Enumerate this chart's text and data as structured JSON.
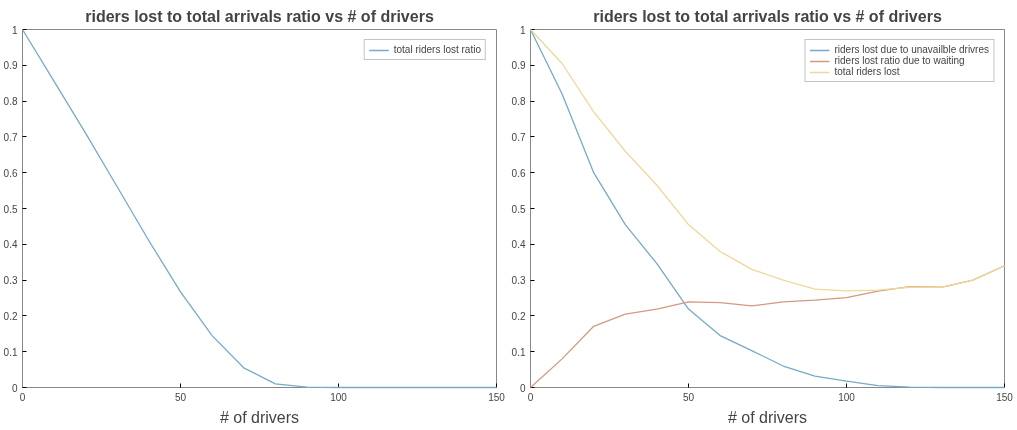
{
  "chart_data": [
    {
      "type": "line",
      "title": "riders lost to total arrivals ratio vs # of drivers",
      "xlabel": "# of drivers",
      "x": [
        0,
        10,
        20,
        30,
        40,
        50,
        60,
        70,
        80,
        90,
        100,
        110,
        120,
        130,
        140,
        150
      ],
      "series": [
        {
          "name": "total riders lost ratio",
          "color": "#77aac8",
          "values": [
            1,
            0.855,
            0.71,
            0.56,
            0.41,
            0.267,
            0.145,
            0.055,
            0.01,
            0.001,
            0,
            0,
            0,
            0,
            0,
            0
          ]
        }
      ],
      "xlim": [
        0,
        150
      ],
      "xticks": [
        0,
        50,
        100,
        150
      ],
      "ylim": [
        0,
        1
      ],
      "yticks": [
        0,
        0.1,
        0.2,
        0.3,
        0.4,
        0.5,
        0.6,
        0.7,
        0.8,
        0.9,
        1
      ],
      "grid": false,
      "legend": "top right",
      "marker": "none",
      "line_style": "solid"
    },
    {
      "type": "line",
      "title": "riders lost to total arrivals ratio vs # of drivers",
      "xlabel": "# of drivers",
      "x": [
        0,
        10,
        20,
        30,
        40,
        50,
        60,
        70,
        80,
        90,
        100,
        110,
        120,
        130,
        140,
        150
      ],
      "series": [
        {
          "name": "riders lost due to unavailble drivres",
          "color": "#77aac8",
          "values": [
            1,
            0.82,
            0.6,
            0.455,
            0.346,
            0.219,
            0.145,
            0.103,
            0.06,
            0.032,
            0.018,
            0.005,
            0.001,
            0,
            0,
            0
          ]
        },
        {
          "name": "riders lost ratio due to waiting",
          "color": "#d29a80",
          "values": [
            0,
            0.08,
            0.171,
            0.205,
            0.219,
            0.239,
            0.237,
            0.228,
            0.239,
            0.244,
            0.251,
            0.269,
            0.282,
            0.28,
            0.3,
            0.34
          ]
        },
        {
          "name": "total riders lost",
          "color": "#eed89a",
          "values": [
            1,
            0.905,
            0.77,
            0.66,
            0.565,
            0.455,
            0.38,
            0.33,
            0.3,
            0.275,
            0.27,
            0.272,
            0.28,
            0.28,
            0.3,
            0.34
          ]
        }
      ],
      "xlim": [
        0,
        150
      ],
      "xticks": [
        0,
        50,
        100,
        150
      ],
      "ylim": [
        0,
        1
      ],
      "yticks": [
        0,
        0.1,
        0.2,
        0.3,
        0.4,
        0.5,
        0.6,
        0.7,
        0.8,
        0.9,
        1
      ],
      "grid": false,
      "legend": "top right",
      "marker": "none",
      "line_style": "solid"
    }
  ]
}
